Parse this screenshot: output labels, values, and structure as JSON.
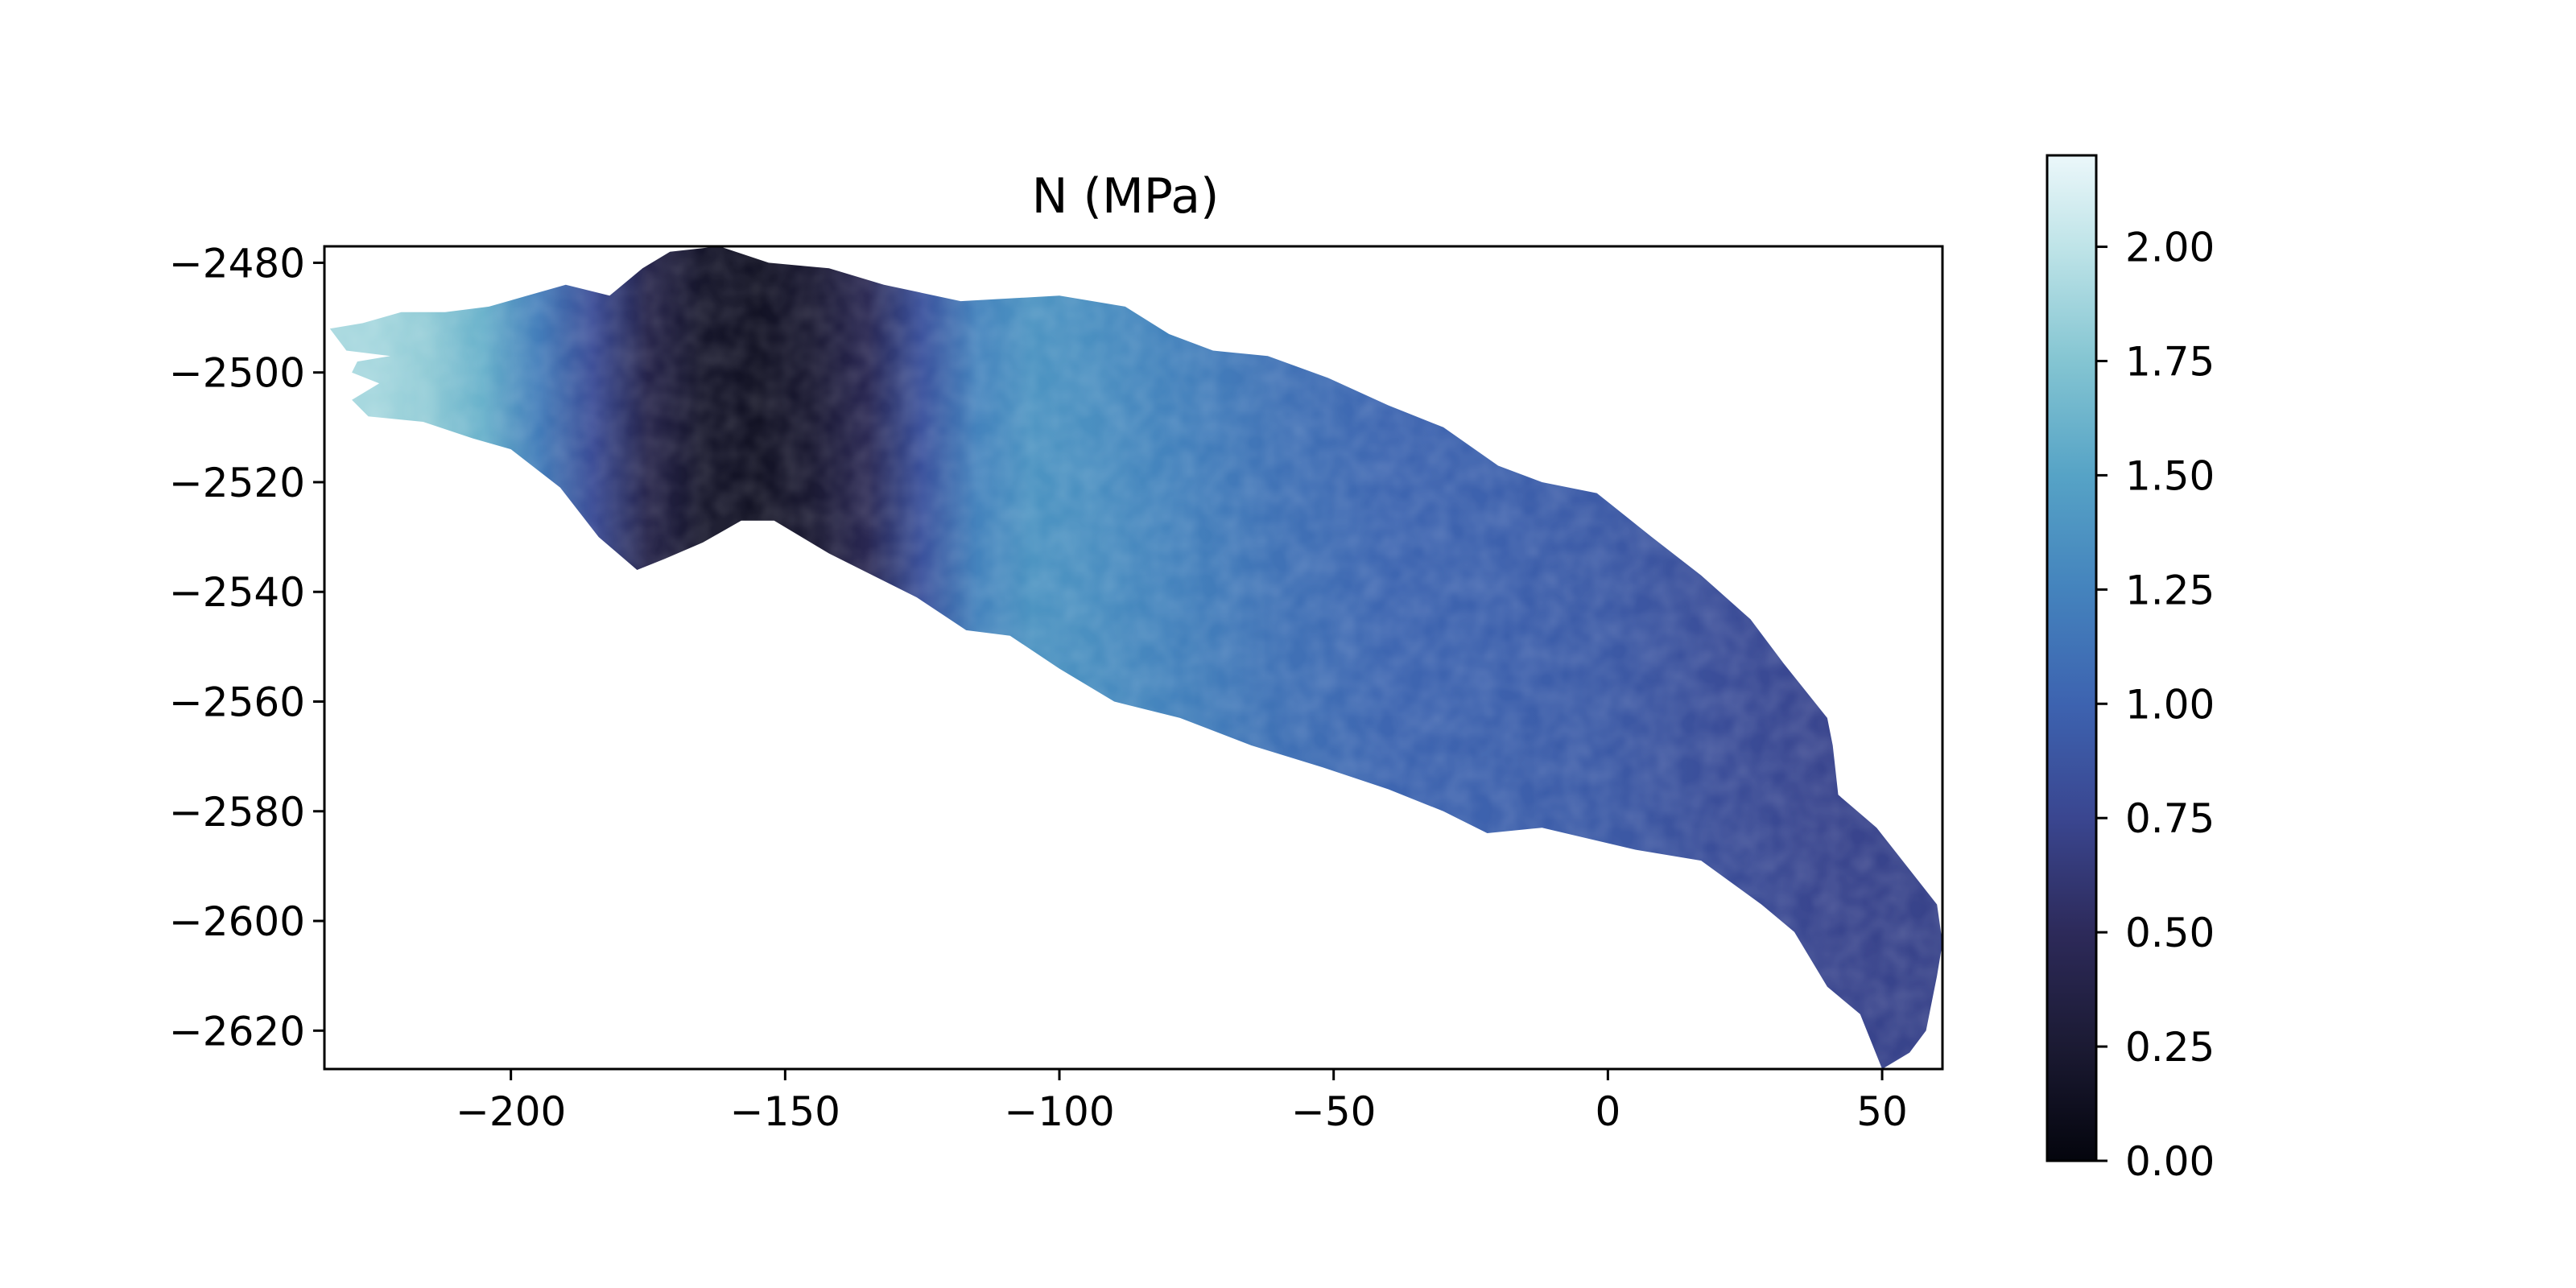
{
  "chart_data": {
    "type": "heatmap",
    "title": "N (MPa)",
    "xlabel": "",
    "ylabel": "",
    "xlim": [
      -234,
      61
    ],
    "ylim": [
      -2627,
      -2477
    ],
    "xticks": [
      -200,
      -150,
      -100,
      -50,
      0,
      50
    ],
    "xtick_labels": [
      "−200",
      "−150",
      "−100",
      "−50",
      "0",
      "50"
    ],
    "yticks": [
      -2480,
      -2500,
      -2520,
      -2540,
      -2560,
      -2580,
      -2600,
      -2620
    ],
    "ytick_labels": [
      "−2480",
      "−2500",
      "−2520",
      "−2540",
      "−2560",
      "−2580",
      "−2600",
      "−2620"
    ],
    "grid": false,
    "colorbar": {
      "colormap": "ice",
      "range": [
        0,
        2.2
      ],
      "ticks": [
        0.0,
        0.25,
        0.5,
        0.75,
        1.0,
        1.25,
        1.5,
        1.75,
        2.0
      ],
      "tick_labels": [
        "0.00",
        "0.25",
        "0.50",
        "0.75",
        "1.00",
        "1.25",
        "1.50",
        "1.75",
        "2.00"
      ],
      "stops": [
        {
          "v": 0.0,
          "color": "#04050d"
        },
        {
          "v": 0.25,
          "color": "#1b1a33"
        },
        {
          "v": 0.5,
          "color": "#2d2a5a"
        },
        {
          "v": 0.75,
          "color": "#3a4690"
        },
        {
          "v": 1.0,
          "color": "#3d63b0"
        },
        {
          "v": 1.25,
          "color": "#4483bd"
        },
        {
          "v": 1.5,
          "color": "#56a3c6"
        },
        {
          "v": 1.75,
          "color": "#84c5d2"
        },
        {
          "v": 2.0,
          "color": "#bfe4e8"
        },
        {
          "v": 2.2,
          "color": "#ebf7fa"
        }
      ]
    },
    "outline": [
      [
        -233,
        -2492
      ],
      [
        -227,
        -2491
      ],
      [
        -220,
        -2489
      ],
      [
        -212,
        -2489
      ],
      [
        -204,
        -2488
      ],
      [
        -197,
        -2486
      ],
      [
        -190,
        -2484
      ],
      [
        -182,
        -2486
      ],
      [
        -176,
        -2481
      ],
      [
        -171,
        -2478
      ],
      [
        -162,
        -2477
      ],
      [
        -153,
        -2480
      ],
      [
        -142,
        -2481
      ],
      [
        -132,
        -2484
      ],
      [
        -118,
        -2487
      ],
      [
        -100,
        -2486
      ],
      [
        -88,
        -2488
      ],
      [
        -80,
        -2493
      ],
      [
        -72,
        -2496
      ],
      [
        -62,
        -2497
      ],
      [
        -51,
        -2501
      ],
      [
        -40,
        -2506
      ],
      [
        -30,
        -2510
      ],
      [
        -20,
        -2517
      ],
      [
        -12,
        -2520
      ],
      [
        -2,
        -2522
      ],
      [
        8,
        -2530
      ],
      [
        17,
        -2537
      ],
      [
        26,
        -2545
      ],
      [
        32,
        -2553
      ],
      [
        40,
        -2563
      ],
      [
        41,
        -2568
      ],
      [
        42,
        -2577
      ],
      [
        49,
        -2583
      ],
      [
        60,
        -2597
      ],
      [
        61,
        -2604
      ],
      [
        60,
        -2610
      ],
      [
        58,
        -2620
      ],
      [
        55,
        -2624
      ],
      [
        50,
        -2627
      ],
      [
        46,
        -2617
      ],
      [
        40,
        -2612
      ],
      [
        34,
        -2602
      ],
      [
        28,
        -2597
      ],
      [
        17,
        -2589
      ],
      [
        5,
        -2587
      ],
      [
        -12,
        -2583
      ],
      [
        -22,
        -2584
      ],
      [
        -30,
        -2580
      ],
      [
        -40,
        -2576
      ],
      [
        -52,
        -2572
      ],
      [
        -65,
        -2568
      ],
      [
        -78,
        -2563
      ],
      [
        -90,
        -2560
      ],
      [
        -100,
        -2554
      ],
      [
        -109,
        -2548
      ],
      [
        -117,
        -2547
      ],
      [
        -126,
        -2541
      ],
      [
        -136,
        -2536
      ],
      [
        -142,
        -2533
      ],
      [
        -152,
        -2527
      ],
      [
        -158,
        -2527
      ],
      [
        -165,
        -2531
      ],
      [
        -172,
        -2534
      ],
      [
        -177,
        -2536
      ],
      [
        -184,
        -2530
      ],
      [
        -191,
        -2521
      ],
      [
        -200,
        -2514
      ],
      [
        -207,
        -2512
      ],
      [
        -216,
        -2509
      ],
      [
        -226,
        -2508
      ],
      [
        -229,
        -2505
      ],
      [
        -224,
        -2502
      ],
      [
        -229,
        -2500
      ],
      [
        -228,
        -2498
      ],
      [
        -222,
        -2497
      ],
      [
        -230,
        -2496
      ]
    ],
    "field": [
      {
        "x": -225,
        "N": 1.9
      },
      {
        "x": -215,
        "N": 1.8
      },
      {
        "x": -205,
        "N": 1.6
      },
      {
        "x": -195,
        "N": 1.2
      },
      {
        "x": -185,
        "N": 0.8
      },
      {
        "x": -175,
        "N": 0.4
      },
      {
        "x": -165,
        "N": 0.2
      },
      {
        "x": -155,
        "N": 0.15
      },
      {
        "x": -145,
        "N": 0.25
      },
      {
        "x": -135,
        "N": 0.45
      },
      {
        "x": -125,
        "N": 0.85
      },
      {
        "x": -115,
        "N": 1.25
      },
      {
        "x": -105,
        "N": 1.38
      },
      {
        "x": -95,
        "N": 1.35
      },
      {
        "x": -80,
        "N": 1.25
      },
      {
        "x": -60,
        "N": 1.12
      },
      {
        "x": -40,
        "N": 1.02
      },
      {
        "x": -20,
        "N": 0.98
      },
      {
        "x": 0,
        "N": 0.92
      },
      {
        "x": 20,
        "N": 0.82
      },
      {
        "x": 40,
        "N": 0.74
      },
      {
        "x": 60,
        "N": 0.72
      }
    ]
  }
}
